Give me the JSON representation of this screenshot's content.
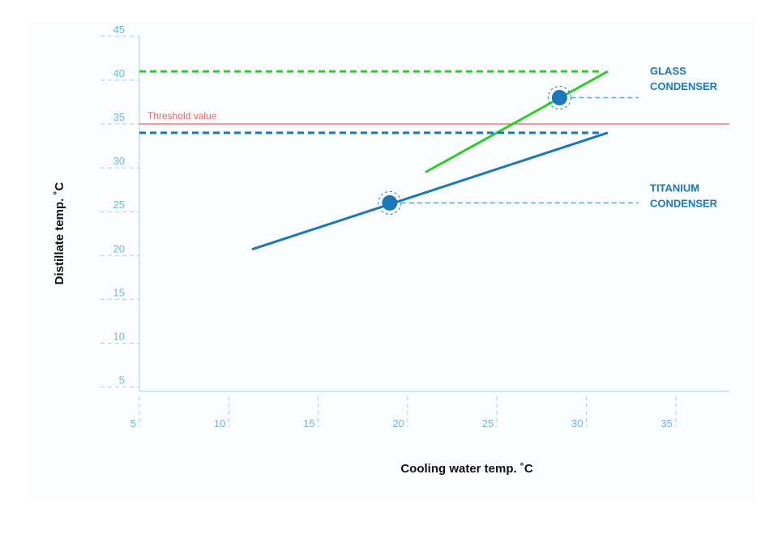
{
  "chart_data": {
    "type": "line",
    "xlabel": "Cooling water temp. ˚C",
    "ylabel": "Distillate temp. ˚C",
    "x_ticks": [
      "5",
      "10",
      "15",
      "20",
      "25",
      "30",
      "35"
    ],
    "y_ticks": [
      "5",
      "10",
      "15",
      "20",
      "25",
      "30",
      "35",
      "40",
      "45"
    ],
    "xlim": [
      5,
      38
    ],
    "ylim": [
      4.5,
      46
    ],
    "threshold": {
      "label": "Threshold value",
      "value": 35,
      "color": "#e8615b"
    },
    "series": [
      {
        "name": "GLASS CONDENSER",
        "label_lines": [
          "GLASS",
          "CONDENSER"
        ],
        "color": "#2ccd2c",
        "x": [
          21,
          31.2
        ],
        "y": [
          29.5,
          41
        ],
        "max_line_y": 41,
        "marker": {
          "x": 28.5,
          "y": 38
        }
      },
      {
        "name": "TITANIUM CONDENSER",
        "label_lines": [
          "TITANIUM",
          "CONDENSER"
        ],
        "color": "#1a77b9",
        "x": [
          11.3,
          31.2
        ],
        "y": [
          20.7,
          34
        ],
        "max_line_y": 34,
        "marker": {
          "x": 19,
          "y": 26
        }
      }
    ],
    "colors": {
      "axis": "#9fd3ee",
      "tick_text": "#6fb7dc",
      "marker_ring": "#1a77b9"
    }
  }
}
